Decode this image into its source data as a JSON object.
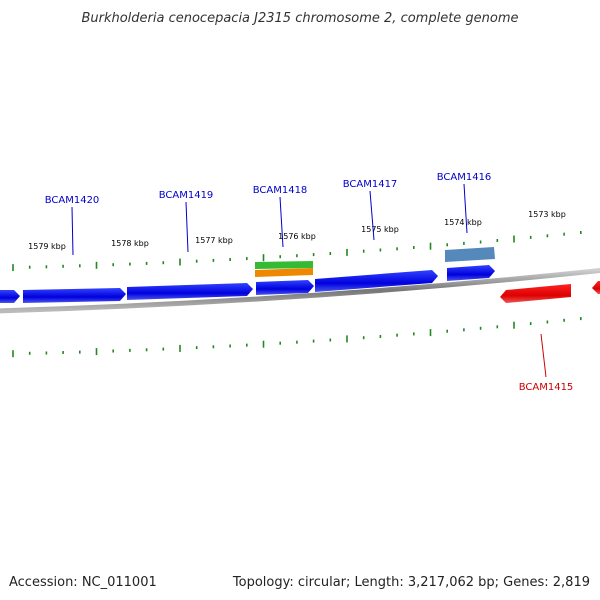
{
  "title": "Burkholderia cenocepacia J2315 chromosome 2, complete genome",
  "footer": {
    "accession": "Accession: NC_011001",
    "summary": "Topology: circular; Length: 3,217,062 bp; Genes: 2,819"
  },
  "kbp_labels": [
    "1579 kbp",
    "1578 kbp",
    "1577 kbp",
    "1576 kbp",
    "1575 kbp",
    "1574 kbp",
    "1573 kbp"
  ],
  "genes": {
    "forward_label_color": "#0000cc",
    "reverse_label_color": "#cc0000",
    "forward": [
      "BCAM1420",
      "BCAM1419",
      "BCAM1418",
      "BCAM1417",
      "BCAM1416"
    ],
    "reverse": [
      "BCAM1415"
    ]
  },
  "colors": {
    "forward_gene": "#0000ee",
    "reverse_gene": "#ee1111",
    "backbone": "#888888",
    "tick": "#228822",
    "feature_green": "#33bb33",
    "feature_orange": "#ee8800",
    "feature_steelblue": "#5588bb"
  }
}
